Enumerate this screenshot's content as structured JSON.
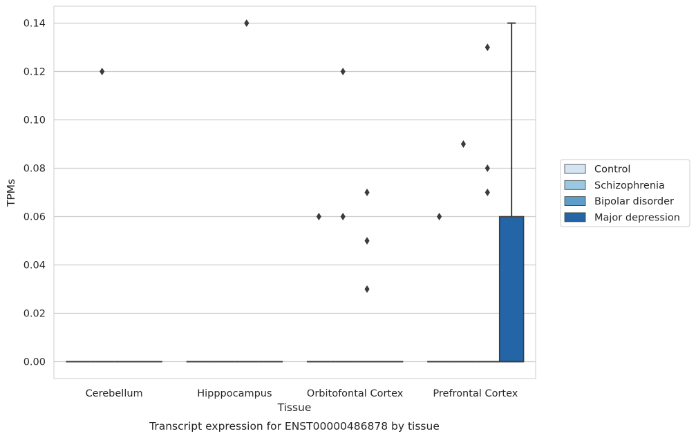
{
  "chart_data": {
    "type": "box",
    "caption": "Transcript expression for ENST00000486878 by tissue",
    "xlabel": "Tissue",
    "ylabel": "TPMs",
    "categories": [
      "Cerebellum",
      "Hipppocampus",
      "Orbitofontal Cortex",
      "Prefrontal Cortex"
    ],
    "ylim": [
      -0.007,
      0.147
    ],
    "yticks": [
      0.0,
      0.02,
      0.04,
      0.06,
      0.08,
      0.1,
      0.12,
      0.14
    ],
    "ytick_labels": [
      "0.00",
      "0.02",
      "0.04",
      "0.06",
      "0.08",
      "0.10",
      "0.12",
      "0.14"
    ],
    "grid": "horizontal",
    "legend_position": "right",
    "series": [
      {
        "name": "Control",
        "color": "#d3e4f3",
        "boxes": [
          {
            "category": "Cerebellum",
            "q1": 0,
            "median": 0,
            "q3": 0,
            "whisker_low": 0,
            "whisker_high": 0,
            "outliers": []
          },
          {
            "category": "Hipppocampus",
            "q1": 0,
            "median": 0,
            "q3": 0,
            "whisker_low": 0,
            "whisker_high": 0,
            "outliers": []
          },
          {
            "category": "Orbitofontal Cortex",
            "q1": 0,
            "median": 0,
            "q3": 0,
            "whisker_low": 0,
            "whisker_high": 0,
            "outliers": [
              0.06
            ]
          },
          {
            "category": "Prefrontal Cortex",
            "q1": 0,
            "median": 0,
            "q3": 0,
            "whisker_low": 0,
            "whisker_high": 0,
            "outliers": [
              0.06
            ]
          }
        ]
      },
      {
        "name": "Schizophrenia",
        "color": "#9ac8e0",
        "boxes": [
          {
            "category": "Cerebellum",
            "q1": 0,
            "median": 0,
            "q3": 0,
            "whisker_low": 0,
            "whisker_high": 0,
            "outliers": [
              0.12
            ]
          },
          {
            "category": "Hipppocampus",
            "q1": 0,
            "median": 0,
            "q3": 0,
            "whisker_low": 0,
            "whisker_high": 0,
            "outliers": []
          },
          {
            "category": "Orbitofontal Cortex",
            "q1": 0,
            "median": 0,
            "q3": 0,
            "whisker_low": 0,
            "whisker_high": 0,
            "outliers": [
              0.12,
              0.06
            ]
          },
          {
            "category": "Prefrontal Cortex",
            "q1": 0,
            "median": 0,
            "q3": 0,
            "whisker_low": 0,
            "whisker_high": 0,
            "outliers": [
              0.09
            ]
          }
        ]
      },
      {
        "name": "Bipolar disorder",
        "color": "#5a9ec9",
        "boxes": [
          {
            "category": "Cerebellum",
            "q1": 0,
            "median": 0,
            "q3": 0,
            "whisker_low": 0,
            "whisker_high": 0,
            "outliers": []
          },
          {
            "category": "Hipppocampus",
            "q1": 0,
            "median": 0,
            "q3": 0,
            "whisker_low": 0,
            "whisker_high": 0,
            "outliers": [
              0.14
            ]
          },
          {
            "category": "Orbitofontal Cortex",
            "q1": 0,
            "median": 0,
            "q3": 0,
            "whisker_low": 0,
            "whisker_high": 0,
            "outliers": [
              0.07,
              0.05,
              0.03
            ]
          },
          {
            "category": "Prefrontal Cortex",
            "q1": 0,
            "median": 0,
            "q3": 0,
            "whisker_low": 0,
            "whisker_high": 0,
            "outliers": [
              0.13,
              0.08,
              0.07
            ]
          }
        ]
      },
      {
        "name": "Major depression",
        "color": "#2465a7",
        "boxes": [
          {
            "category": "Cerebellum",
            "q1": 0,
            "median": 0,
            "q3": 0,
            "whisker_low": 0,
            "whisker_high": 0,
            "outliers": []
          },
          {
            "category": "Hipppocampus",
            "q1": 0,
            "median": 0,
            "q3": 0,
            "whisker_low": 0,
            "whisker_high": 0,
            "outliers": []
          },
          {
            "category": "Orbitofontal Cortex",
            "q1": 0,
            "median": 0,
            "q3": 0,
            "whisker_low": 0,
            "whisker_high": 0,
            "outliers": []
          },
          {
            "category": "Prefrontal Cortex",
            "q1": 0,
            "median": 0,
            "q3": 0.06,
            "whisker_low": 0,
            "whisker_high": 0.14,
            "outliers": []
          }
        ]
      }
    ]
  },
  "style": {
    "grid_color": "#cccccc",
    "frame_color": "#cccccc",
    "line_color": "#3b3b3b",
    "outlier_color": "#3b3b3b"
  }
}
